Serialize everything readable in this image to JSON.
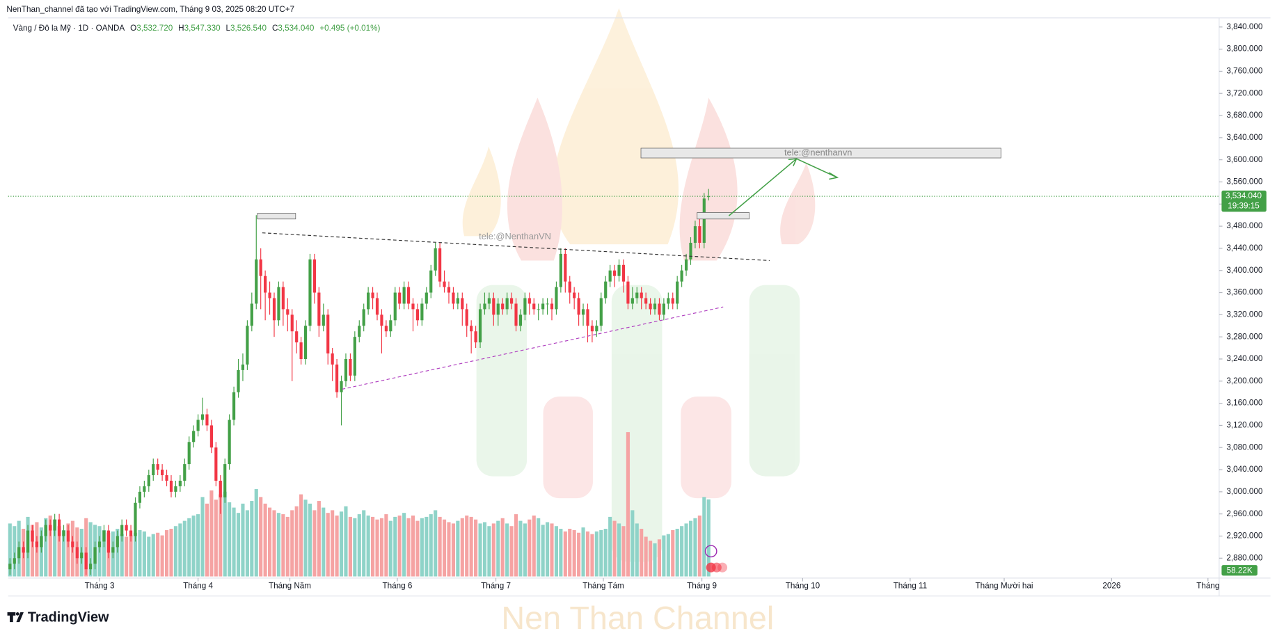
{
  "header": {
    "attribution": "NenThan_channel đã tạo với TradingView.com, Tháng 9 03, 2025 08:20 UTC+7",
    "symbol": "Vàng / Đô la Mỹ · 1D · OANDA",
    "ohlc_names": [
      "O",
      "H",
      "L",
      "C"
    ],
    "ohlc_values": [
      "3,532.720",
      "3,547.330",
      "3,526.540",
      "3,534.040"
    ],
    "change": "+0.495 (+0.01%)"
  },
  "chart_data": {
    "type": "candlestick",
    "ohlc": [
      [
        2860,
        2880,
        2850,
        2870
      ],
      [
        2870,
        2890,
        2860,
        2880
      ],
      [
        2880,
        2910,
        2870,
        2900
      ],
      [
        2900,
        2910,
        2880,
        2890
      ],
      [
        2890,
        2940,
        2880,
        2930
      ],
      [
        2930,
        2940,
        2900,
        2910
      ],
      [
        2910,
        2920,
        2890,
        2900
      ],
      [
        2900,
        2930,
        2890,
        2920
      ],
      [
        2920,
        2950,
        2910,
        2940
      ],
      [
        2940,
        2950,
        2920,
        2930
      ],
      [
        2930,
        2960,
        2920,
        2950
      ],
      [
        2950,
        2960,
        2910,
        2920
      ],
      [
        2920,
        2940,
        2910,
        2930
      ],
      [
        2930,
        2940,
        2900,
        2910
      ],
      [
        2910,
        2920,
        2890,
        2900
      ],
      [
        2900,
        2910,
        2870,
        2880
      ],
      [
        2880,
        2900,
        2870,
        2890
      ],
      [
        2890,
        2900,
        2850,
        2860
      ],
      [
        2860,
        2880,
        2850,
        2870
      ],
      [
        2870,
        2910,
        2860,
        2900
      ],
      [
        2900,
        2920,
        2890,
        2910
      ],
      [
        2910,
        2940,
        2900,
        2930
      ],
      [
        2930,
        2940,
        2880,
        2890
      ],
      [
        2890,
        2910,
        2880,
        2900
      ],
      [
        2900,
        2930,
        2890,
        2920
      ],
      [
        2920,
        2950,
        2910,
        2940
      ],
      [
        2940,
        2950,
        2920,
        2930
      ],
      [
        2930,
        2940,
        2910,
        2920
      ],
      [
        2920,
        2990,
        2910,
        2980
      ],
      [
        2980,
        3010,
        2970,
        3000
      ],
      [
        3000,
        3020,
        2990,
        3010
      ],
      [
        3010,
        3040,
        3000,
        3030
      ],
      [
        3030,
        3060,
        3020,
        3050
      ],
      [
        3050,
        3060,
        3030,
        3040
      ],
      [
        3040,
        3050,
        3020,
        3030
      ],
      [
        3030,
        3040,
        3010,
        3020
      ],
      [
        3020,
        3030,
        2990,
        3000
      ],
      [
        3000,
        3020,
        2990,
        3010
      ],
      [
        3010,
        3030,
        3000,
        3020
      ],
      [
        3020,
        3060,
        3010,
        3050
      ],
      [
        3050,
        3100,
        3040,
        3090
      ],
      [
        3090,
        3120,
        3080,
        3110
      ],
      [
        3110,
        3140,
        3100,
        3130
      ],
      [
        3130,
        3170,
        3120,
        3140
      ],
      [
        3140,
        3150,
        3110,
        3120
      ],
      [
        3120,
        3130,
        3070,
        3080
      ],
      [
        3080,
        3090,
        3010,
        3020
      ],
      [
        3020,
        3030,
        2960,
        2990
      ],
      [
        2990,
        3060,
        2980,
        3050
      ],
      [
        3050,
        3140,
        3040,
        3130
      ],
      [
        3130,
        3190,
        3120,
        3180
      ],
      [
        3180,
        3240,
        3170,
        3220
      ],
      [
        3220,
        3250,
        3200,
        3230
      ],
      [
        3230,
        3310,
        3220,
        3300
      ],
      [
        3300,
        3360,
        3290,
        3340
      ],
      [
        3340,
        3500,
        3330,
        3420
      ],
      [
        3420,
        3440,
        3330,
        3390
      ],
      [
        3390,
        3400,
        3310,
        3360
      ],
      [
        3360,
        3380,
        3320,
        3350
      ],
      [
        3350,
        3360,
        3280,
        3310
      ],
      [
        3310,
        3380,
        3300,
        3370
      ],
      [
        3370,
        3380,
        3300,
        3330
      ],
      [
        3330,
        3350,
        3290,
        3320
      ],
      [
        3320,
        3330,
        3200,
        3290
      ],
      [
        3290,
        3310,
        3250,
        3270
      ],
      [
        3270,
        3280,
        3230,
        3240
      ],
      [
        3240,
        3310,
        3230,
        3300
      ],
      [
        3300,
        3430,
        3290,
        3420
      ],
      [
        3420,
        3430,
        3340,
        3360
      ],
      [
        3360,
        3370,
        3280,
        3300
      ],
      [
        3300,
        3340,
        3290,
        3320
      ],
      [
        3320,
        3330,
        3230,
        3250
      ],
      [
        3250,
        3260,
        3200,
        3230
      ],
      [
        3230,
        3240,
        3170,
        3180
      ],
      [
        3180,
        3210,
        3120,
        3200
      ],
      [
        3200,
        3250,
        3190,
        3240
      ],
      [
        3240,
        3250,
        3200,
        3210
      ],
      [
        3210,
        3290,
        3200,
        3280
      ],
      [
        3280,
        3310,
        3270,
        3300
      ],
      [
        3300,
        3340,
        3290,
        3330
      ],
      [
        3330,
        3370,
        3320,
        3360
      ],
      [
        3360,
        3370,
        3330,
        3350
      ],
      [
        3350,
        3360,
        3310,
        3320
      ],
      [
        3320,
        3330,
        3250,
        3300
      ],
      [
        3300,
        3310,
        3280,
        3290
      ],
      [
        3290,
        3320,
        3280,
        3310
      ],
      [
        3310,
        3370,
        3300,
        3360
      ],
      [
        3360,
        3370,
        3330,
        3340
      ],
      [
        3340,
        3380,
        3330,
        3370
      ],
      [
        3370,
        3380,
        3330,
        3340
      ],
      [
        3340,
        3350,
        3290,
        3330
      ],
      [
        3330,
        3340,
        3300,
        3310
      ],
      [
        3310,
        3350,
        3300,
        3340
      ],
      [
        3340,
        3370,
        3330,
        3360
      ],
      [
        3360,
        3410,
        3350,
        3400
      ],
      [
        3400,
        3450,
        3390,
        3440
      ],
      [
        3440,
        3450,
        3370,
        3380
      ],
      [
        3380,
        3400,
        3360,
        3370
      ],
      [
        3370,
        3380,
        3340,
        3360
      ],
      [
        3360,
        3370,
        3330,
        3340
      ],
      [
        3340,
        3360,
        3330,
        3350
      ],
      [
        3350,
        3360,
        3300,
        3330
      ],
      [
        3330,
        3340,
        3280,
        3300
      ],
      [
        3300,
        3310,
        3250,
        3290
      ],
      [
        3290,
        3300,
        3260,
        3270
      ],
      [
        3270,
        3340,
        3260,
        3330
      ],
      [
        3330,
        3360,
        3320,
        3340
      ],
      [
        3340,
        3360,
        3330,
        3350
      ],
      [
        3350,
        3360,
        3300,
        3320
      ],
      [
        3320,
        3350,
        3300,
        3340
      ],
      [
        3340,
        3350,
        3320,
        3330
      ],
      [
        3330,
        3360,
        3320,
        3350
      ],
      [
        3350,
        3360,
        3330,
        3340
      ],
      [
        3340,
        3350,
        3290,
        3300
      ],
      [
        3300,
        3330,
        3290,
        3320
      ],
      [
        3320,
        3360,
        3310,
        3350
      ],
      [
        3350,
        3360,
        3320,
        3340
      ],
      [
        3340,
        3350,
        3320,
        3330
      ],
      [
        3330,
        3340,
        3310,
        3330
      ],
      [
        3330,
        3350,
        3320,
        3340
      ],
      [
        3340,
        3350,
        3320,
        3340
      ],
      [
        3340,
        3350,
        3310,
        3330
      ],
      [
        3330,
        3380,
        3320,
        3370
      ],
      [
        3370,
        3440,
        3360,
        3430
      ],
      [
        3430,
        3440,
        3360,
        3380
      ],
      [
        3380,
        3390,
        3340,
        3360
      ],
      [
        3360,
        3370,
        3330,
        3350
      ],
      [
        3350,
        3360,
        3300,
        3320
      ],
      [
        3320,
        3340,
        3300,
        3330
      ],
      [
        3330,
        3340,
        3270,
        3300
      ],
      [
        3300,
        3310,
        3270,
        3290
      ],
      [
        3290,
        3310,
        3280,
        3300
      ],
      [
        3300,
        3360,
        3290,
        3350
      ],
      [
        3350,
        3390,
        3340,
        3380
      ],
      [
        3380,
        3410,
        3370,
        3400
      ],
      [
        3400,
        3410,
        3370,
        3390
      ],
      [
        3390,
        3420,
        3380,
        3410
      ],
      [
        3410,
        3420,
        3360,
        3380
      ],
      [
        3380,
        3390,
        3330,
        3340
      ],
      [
        3340,
        3370,
        3330,
        3350
      ],
      [
        3350,
        3370,
        3340,
        3360
      ],
      [
        3360,
        3370,
        3330,
        3350
      ],
      [
        3350,
        3360,
        3330,
        3340
      ],
      [
        3340,
        3350,
        3320,
        3330
      ],
      [
        3330,
        3350,
        3320,
        3340
      ],
      [
        3340,
        3350,
        3310,
        3320
      ],
      [
        3320,
        3350,
        3310,
        3340
      ],
      [
        3340,
        3360,
        3330,
        3350
      ],
      [
        3350,
        3360,
        3330,
        3340
      ],
      [
        3340,
        3390,
        3330,
        3380
      ],
      [
        3380,
        3410,
        3370,
        3400
      ],
      [
        3400,
        3430,
        3390,
        3420
      ],
      [
        3420,
        3460,
        3410,
        3450
      ],
      [
        3450,
        3490,
        3440,
        3480
      ],
      [
        3480,
        3500,
        3440,
        3450
      ],
      [
        3450,
        3540,
        3440,
        3530
      ],
      [
        3532.72,
        3547.33,
        3526.54,
        3534.04
      ]
    ],
    "volume": [
      40,
      38,
      42,
      36,
      45,
      39,
      41,
      37,
      44,
      46,
      43,
      38,
      35,
      40,
      42,
      37,
      36,
      44,
      41,
      39,
      38,
      35,
      33,
      34,
      36,
      32,
      30,
      31,
      33,
      35,
      34,
      30,
      32,
      33,
      31,
      35,
      36,
      38,
      40,
      42,
      44,
      46,
      47,
      60,
      55,
      65,
      58,
      62,
      64,
      56,
      52,
      48,
      55,
      50,
      57,
      66,
      60,
      55,
      52,
      50,
      48,
      47,
      45,
      50,
      53,
      62,
      58,
      55,
      50,
      57,
      52,
      48,
      50,
      46,
      49,
      53,
      45,
      44,
      47,
      50,
      46,
      45,
      43,
      44,
      47,
      42,
      45,
      46,
      48,
      44,
      46,
      42,
      44,
      45,
      47,
      50,
      45,
      43,
      41,
      40,
      42,
      44,
      46,
      45,
      43,
      40,
      41,
      38,
      40,
      42,
      44,
      40,
      38,
      47,
      42,
      40,
      43,
      46,
      44,
      39,
      41,
      40,
      38,
      36,
      34,
      36,
      35,
      33,
      37,
      34,
      32,
      34,
      35,
      36,
      45,
      42,
      40,
      38,
      109,
      50,
      40,
      36,
      30,
      27,
      25,
      28,
      31,
      32,
      35,
      36,
      38,
      40,
      42,
      44,
      46,
      60,
      58.22
    ],
    "volume_lim": [
      0,
      420
    ],
    "ylim": [
      2847,
      3852
    ],
    "yticks": [
      {
        "value": 2880,
        "label": "2,880.000"
      },
      {
        "value": 2920,
        "label": "2,920.000"
      },
      {
        "value": 2960,
        "label": "2,960.000"
      },
      {
        "value": 3000,
        "label": "3,000.000"
      },
      {
        "value": 3040,
        "label": "3,040.000"
      },
      {
        "value": 3080,
        "label": "3,080.000"
      },
      {
        "value": 3120,
        "label": "3,120.000"
      },
      {
        "value": 3160,
        "label": "3,160.000"
      },
      {
        "value": 3200,
        "label": "3,200.000"
      },
      {
        "value": 3240,
        "label": "3,240.000"
      },
      {
        "value": 3280,
        "label": "3,280.000"
      },
      {
        "value": 3320,
        "label": "3,320.000"
      },
      {
        "value": 3360,
        "label": "3,360.000"
      },
      {
        "value": 3400,
        "label": "3,400.000"
      },
      {
        "value": 3440,
        "label": "3,440.000"
      },
      {
        "value": 3480,
        "label": "3,480.000"
      },
      {
        "value": 3520,
        "label": "3,520.000"
      },
      {
        "value": 3560,
        "label": "3,560.000"
      },
      {
        "value": 3600,
        "label": "3,600.000"
      },
      {
        "value": 3640,
        "label": "3,640.000"
      },
      {
        "value": 3680,
        "label": "3,680.000"
      },
      {
        "value": 3720,
        "label": "3,720.000"
      },
      {
        "value": 3760,
        "label": "3,760.000"
      },
      {
        "value": 3800,
        "label": "3,800.000"
      },
      {
        "value": 3840,
        "label": "3,840.000"
      }
    ],
    "xlim": [
      -0.4,
      270
    ],
    "xticks": [
      {
        "value": 20,
        "label": "Tháng 3"
      },
      {
        "value": 42,
        "label": "Tháng 4"
      },
      {
        "value": 62.5,
        "label": "Tháng Năm"
      },
      {
        "value": 86.5,
        "label": "Tháng 6"
      },
      {
        "value": 108.5,
        "label": "Tháng 7"
      },
      {
        "value": 132.5,
        "label": "Tháng Tám"
      },
      {
        "value": 154.5,
        "label": "Tháng 9"
      },
      {
        "value": 177,
        "label": "Tháng 10"
      },
      {
        "value": 201,
        "label": "Tháng 11"
      },
      {
        "value": 222,
        "label": "Tháng Mười hai"
      },
      {
        "value": 246,
        "label": "2026"
      },
      {
        "value": 267.5,
        "label": "Tháng"
      }
    ],
    "grid": false,
    "up_color": "#43a047",
    "down_color": "#f23645",
    "volume_up_color": "#8fd3c8",
    "volume_down_color": "#f5a3a3",
    "last_price_label": "3,534.040",
    "countdown": "19:39:15",
    "volume_label": "58.22K",
    "annotations": [
      "tele:@NenthanVN",
      "tele:@nenthanvn"
    ]
  },
  "watermark": "Nen Than Channel",
  "brand": "TradingView"
}
